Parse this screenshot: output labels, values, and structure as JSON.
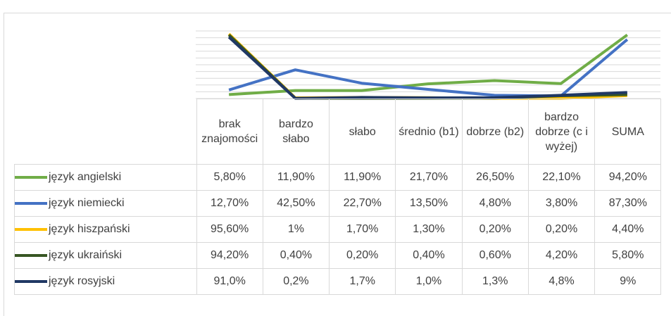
{
  "chart_data": {
    "type": "line",
    "categories": [
      "brak znajomości",
      "bardzo słabo",
      "słabo",
      "średnio (b1)",
      "dobrze (b2)",
      "bardzo dobrze (c i wyżej)",
      "SUMA"
    ],
    "ylim": [
      0,
      100
    ],
    "yticks": [
      0,
      10,
      20,
      30,
      40,
      50,
      60,
      70,
      80,
      90,
      100
    ],
    "grid": true,
    "series": [
      {
        "name": "język angielski",
        "color": "#70ad47",
        "values": [
          5.8,
          11.9,
          11.9,
          21.7,
          26.5,
          22.1,
          94.2
        ],
        "value_labels": [
          "5,80%",
          "11,90%",
          "11,90%",
          "21,70%",
          "26,50%",
          "22,10%",
          "94,20%"
        ]
      },
      {
        "name": "język niemiecki",
        "color": "#4472c4",
        "values": [
          12.7,
          42.5,
          22.7,
          13.5,
          4.8,
          3.8,
          87.3
        ],
        "value_labels": [
          "12,70%",
          "42,50%",
          "22,70%",
          "13,50%",
          "4,80%",
          "3,80%",
          "87,30%"
        ]
      },
      {
        "name": "język hiszpański",
        "color": "#ffc000",
        "values": [
          95.6,
          1,
          1.7,
          1.3,
          0.2,
          0.2,
          4.4
        ],
        "value_labels": [
          "95,60%",
          "1%",
          "1,70%",
          "1,30%",
          "0,20%",
          "0,20%",
          "4,40%"
        ]
      },
      {
        "name": "język ukraiński",
        "color": "#375623",
        "values": [
          94.2,
          0.4,
          0.2,
          0.4,
          0.6,
          4.2,
          5.8
        ],
        "value_labels": [
          "94,20%",
          "0,40%",
          "0,20%",
          "0,40%",
          "0,60%",
          "4,20%",
          "5,80%"
        ]
      },
      {
        "name": "język rosyjski",
        "color": "#203864",
        "values": [
          91.0,
          0.2,
          1.7,
          1.0,
          1.3,
          4.8,
          9
        ],
        "value_labels": [
          "91,0%",
          "0,2%",
          "1,7%",
          "1,0%",
          "1,3%",
          "4,8%",
          "9%"
        ]
      }
    ]
  }
}
